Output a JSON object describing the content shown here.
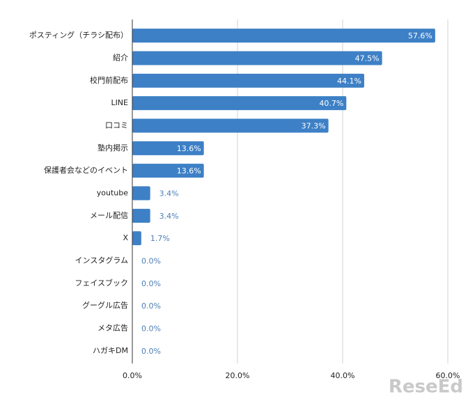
{
  "chart_data": {
    "type": "bar",
    "orientation": "horizontal",
    "categories": [
      "ポスティング（チラシ配布）",
      "紹介",
      "校門前配布",
      "LINE",
      "口コミ",
      "塾内掲示",
      "保護者会などのイベント",
      "youtube",
      "メール配信",
      "X",
      "インスタグラム",
      "フェイスブック",
      "グーグル広告",
      "メタ広告",
      "ハガキDM"
    ],
    "values": [
      57.6,
      47.5,
      44.1,
      40.7,
      37.3,
      13.6,
      13.6,
      3.4,
      3.4,
      1.7,
      0,
      0,
      0,
      0,
      0
    ],
    "value_labels": [
      "57.6%",
      "47.5%",
      "44.1%",
      "40.7%",
      "37.3%",
      "13.6%",
      "13.6%",
      "3.4%",
      "3.4%",
      "1.7%",
      "0.0%",
      "0.0%",
      "0.0%",
      "0.0%",
      "0.0%"
    ],
    "color": "#3d80c6",
    "xlim": [
      0,
      60
    ],
    "xticks": [
      {
        "value": 0,
        "label": "0.0%"
      },
      {
        "value": 20,
        "label": "20.0%"
      },
      {
        "value": 40,
        "label": "40.0%"
      },
      {
        "value": 60,
        "label": "60.0%"
      }
    ],
    "grid": true,
    "watermark": "ReseEd"
  }
}
